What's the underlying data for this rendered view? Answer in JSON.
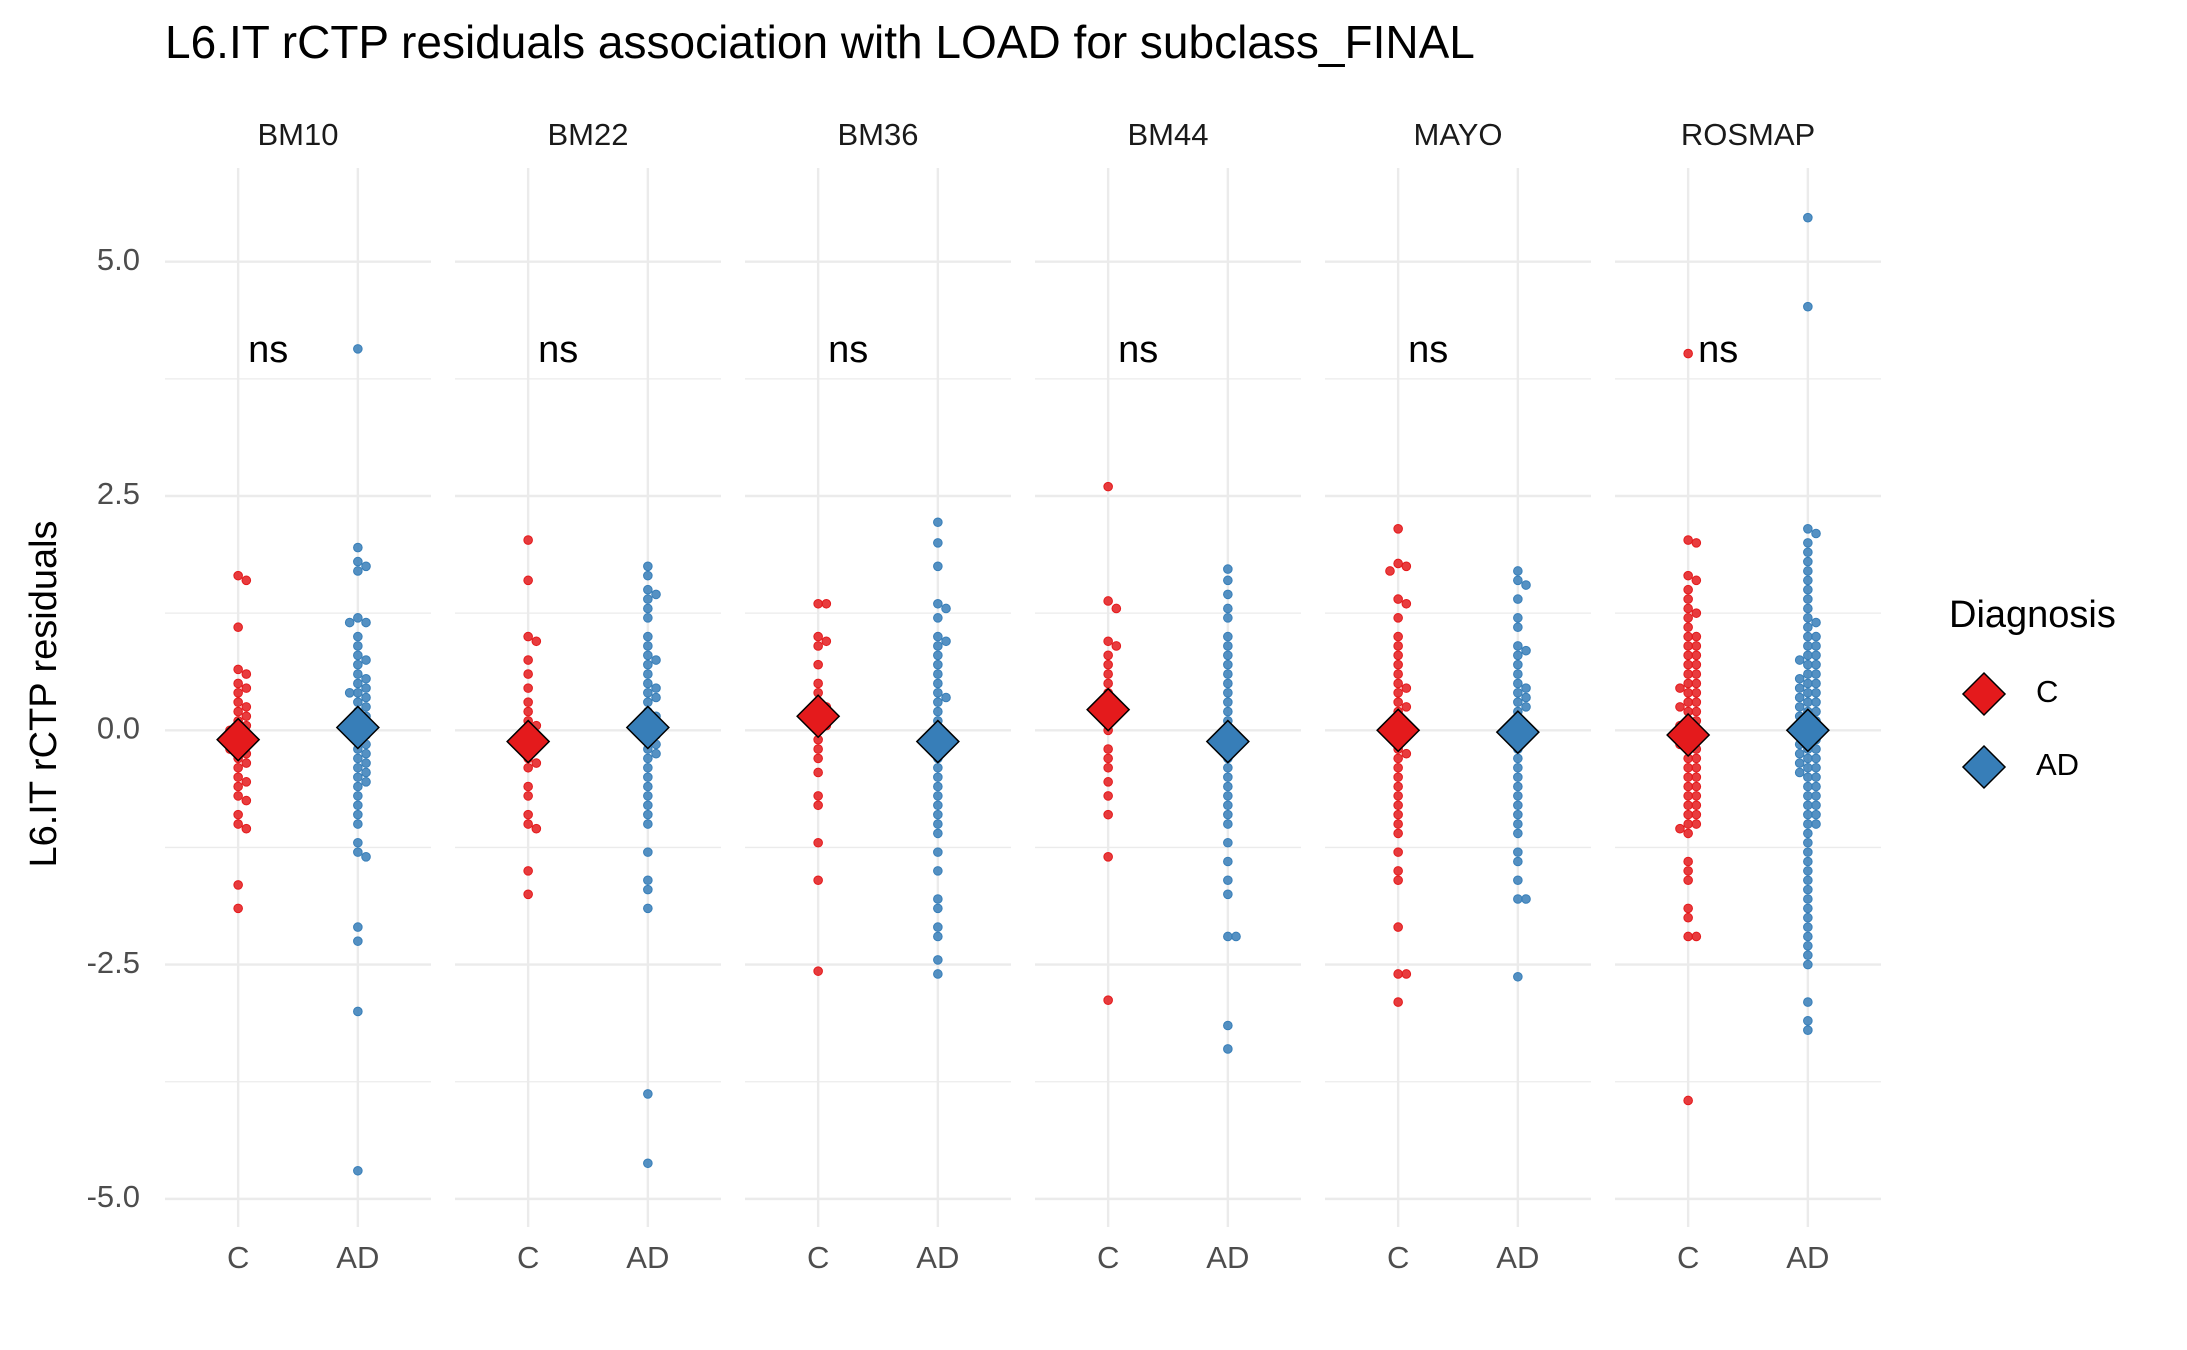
{
  "chart_data": {
    "type": "beeswarm",
    "title": "L6.IT rCTP residuals association with LOAD for subclass_FINAL",
    "y_label": "L6.IT rCTP residuals",
    "legend_title": "Diagnosis",
    "legend_position": "right",
    "categories": [
      "C",
      "AD"
    ],
    "series": [
      {
        "name": "C",
        "color": "#e41a1c"
      },
      {
        "name": "AD",
        "color": "#377eb8"
      }
    ],
    "ylim": [
      -5.3,
      6.0
    ],
    "yticks": [
      {
        "value": -5,
        "label": "-5.0"
      },
      {
        "value": -2.5,
        "label": "-2.5"
      },
      {
        "value": 0,
        "label": "0.0"
      },
      {
        "value": 2.5,
        "label": "2.5"
      },
      {
        "value": 5,
        "label": "5.0"
      }
    ],
    "minor_yticks": [
      -3.75,
      -1.25,
      1.25,
      3.75
    ],
    "grid": true,
    "panels": [
      {
        "name": "BM10",
        "label": "ns",
        "means": [
          -0.1,
          0.03
        ],
        "values": [
          [
            1.65,
            1.6,
            1.1,
            0.65,
            0.6,
            0.5,
            0.45,
            0.4,
            0.3,
            0.25,
            0.2,
            0.15,
            0.1,
            0.05,
            0.0,
            0.0,
            -0.05,
            -0.1,
            -0.1,
            -0.15,
            -0.2,
            -0.2,
            -0.25,
            -0.3,
            -0.35,
            -0.4,
            -0.5,
            -0.55,
            -0.6,
            -0.7,
            -0.75,
            -0.9,
            -1.0,
            -1.05,
            -1.65,
            -1.9
          ],
          [
            4.07,
            1.95,
            1.8,
            1.75,
            1.7,
            1.2,
            1.15,
            1.15,
            1.0,
            0.9,
            0.8,
            0.75,
            0.7,
            0.6,
            0.55,
            0.5,
            0.45,
            0.4,
            0.4,
            0.35,
            0.3,
            0.25,
            0.2,
            0.15,
            0.1,
            0.05,
            0.05,
            0.0,
            -0.05,
            -0.1,
            -0.15,
            -0.2,
            -0.25,
            -0.3,
            -0.35,
            -0.4,
            -0.45,
            -0.5,
            -0.55,
            -0.6,
            -0.7,
            -0.8,
            -0.9,
            -1.0,
            -1.2,
            -1.3,
            -1.35,
            -2.1,
            -2.25,
            -3.0,
            -4.7
          ]
        ]
      },
      {
        "name": "BM22",
        "label": "ns",
        "means": [
          -0.12,
          0.03
        ],
        "values": [
          [
            2.03,
            1.6,
            1.0,
            0.95,
            0.75,
            0.6,
            0.45,
            0.3,
            0.2,
            0.1,
            0.05,
            0.0,
            -0.05,
            -0.1,
            -0.15,
            -0.2,
            -0.3,
            -0.35,
            -0.4,
            -0.6,
            -0.7,
            -0.9,
            -1.0,
            -1.05,
            -1.5,
            -1.75
          ],
          [
            1.75,
            1.65,
            1.5,
            1.45,
            1.4,
            1.3,
            1.2,
            1.0,
            0.9,
            0.8,
            0.75,
            0.7,
            0.6,
            0.5,
            0.45,
            0.4,
            0.35,
            0.3,
            0.2,
            0.15,
            0.1,
            0.05,
            0.0,
            -0.05,
            -0.1,
            -0.15,
            -0.2,
            -0.25,
            -0.3,
            -0.4,
            -0.5,
            -0.6,
            -0.7,
            -0.8,
            -0.9,
            -1.0,
            -1.3,
            -1.6,
            -1.7,
            -1.9,
            -3.88,
            -4.62
          ]
        ]
      },
      {
        "name": "BM36",
        "label": "ns",
        "means": [
          0.15,
          -0.12
        ],
        "values": [
          [
            1.35,
            1.35,
            1.0,
            0.95,
            0.9,
            0.7,
            0.5,
            0.4,
            0.3,
            0.25,
            0.2,
            0.15,
            0.1,
            0.05,
            0.0,
            -0.1,
            -0.2,
            -0.3,
            -0.45,
            -0.7,
            -0.8,
            -1.2,
            -1.6,
            -2.57
          ],
          [
            2.22,
            2.0,
            1.75,
            1.35,
            1.3,
            1.2,
            1.0,
            0.95,
            0.9,
            0.8,
            0.7,
            0.6,
            0.5,
            0.4,
            0.35,
            0.3,
            0.2,
            0.1,
            0.0,
            -0.05,
            -0.1,
            -0.2,
            -0.3,
            -0.4,
            -0.5,
            -0.6,
            -0.7,
            -0.8,
            -0.9,
            -1.0,
            -1.1,
            -1.3,
            -1.5,
            -1.8,
            -1.9,
            -2.1,
            -2.2,
            -2.45,
            -2.6
          ]
        ]
      },
      {
        "name": "BM44",
        "label": "ns",
        "means": [
          0.22,
          -0.12
        ],
        "values": [
          [
            2.6,
            1.38,
            1.3,
            0.95,
            0.9,
            0.8,
            0.7,
            0.6,
            0.5,
            0.4,
            0.3,
            0.2,
            0.15,
            0.1,
            0.0,
            -0.2,
            -0.3,
            -0.4,
            -0.55,
            -0.7,
            -0.9,
            -1.35,
            -2.88
          ],
          [
            1.72,
            1.6,
            1.45,
            1.3,
            1.2,
            1.0,
            0.9,
            0.8,
            0.7,
            0.6,
            0.5,
            0.4,
            0.3,
            0.2,
            0.1,
            0.0,
            -0.05,
            -0.1,
            -0.2,
            -0.3,
            -0.4,
            -0.5,
            -0.6,
            -0.7,
            -0.8,
            -0.9,
            -1.0,
            -1.2,
            -1.4,
            -1.6,
            -1.75,
            -2.2,
            -2.2,
            -3.15,
            -3.4
          ]
        ]
      },
      {
        "name": "MAYO",
        "label": "ns",
        "means": [
          0.0,
          -0.02
        ],
        "values": [
          [
            2.15,
            1.78,
            1.75,
            1.7,
            1.4,
            1.35,
            1.2,
            1.0,
            0.9,
            0.8,
            0.7,
            0.6,
            0.5,
            0.45,
            0.4,
            0.3,
            0.25,
            0.2,
            0.1,
            0.05,
            0.0,
            -0.05,
            -0.1,
            -0.2,
            -0.25,
            -0.3,
            -0.4,
            -0.5,
            -0.6,
            -0.7,
            -0.8,
            -0.9,
            -1.0,
            -1.1,
            -1.3,
            -1.5,
            -1.6,
            -2.1,
            -2.6,
            -2.6,
            -2.9
          ],
          [
            1.7,
            1.6,
            1.55,
            1.4,
            1.2,
            1.1,
            0.9,
            0.85,
            0.8,
            0.7,
            0.6,
            0.5,
            0.45,
            0.4,
            0.35,
            0.3,
            0.25,
            0.2,
            0.1,
            0.0,
            -0.05,
            -0.1,
            -0.2,
            -0.3,
            -0.4,
            -0.5,
            -0.6,
            -0.7,
            -0.8,
            -0.9,
            -1.0,
            -1.1,
            -1.3,
            -1.4,
            -1.6,
            -1.8,
            -1.8,
            -2.63
          ]
        ]
      },
      {
        "name": "ROSMAP",
        "label": "ns",
        "means": [
          -0.05,
          0.0
        ],
        "values": [
          [
            4.02,
            2.03,
            2.0,
            1.65,
            1.6,
            1.5,
            1.4,
            1.3,
            1.25,
            1.2,
            1.1,
            1.0,
            1.0,
            0.9,
            0.9,
            0.8,
            0.8,
            0.7,
            0.7,
            0.6,
            0.6,
            0.5,
            0.5,
            0.45,
            0.4,
            0.4,
            0.3,
            0.3,
            0.25,
            0.2,
            0.2,
            0.1,
            0.1,
            0.05,
            0.0,
            0.0,
            -0.05,
            -0.1,
            -0.1,
            -0.15,
            -0.2,
            -0.2,
            -0.3,
            -0.3,
            -0.4,
            -0.4,
            -0.5,
            -0.5,
            -0.6,
            -0.6,
            -0.7,
            -0.7,
            -0.8,
            -0.8,
            -0.9,
            -0.9,
            -1.0,
            -1.0,
            -1.05,
            -1.1,
            -1.4,
            -1.5,
            -1.6,
            -1.9,
            -2.0,
            -2.2,
            -2.2,
            -3.95
          ],
          [
            5.47,
            4.52,
            2.15,
            2.1,
            2.0,
            1.9,
            1.8,
            1.7,
            1.6,
            1.5,
            1.4,
            1.3,
            1.2,
            1.15,
            1.1,
            1.0,
            1.0,
            0.9,
            0.9,
            0.8,
            0.8,
            0.75,
            0.7,
            0.7,
            0.6,
            0.6,
            0.55,
            0.5,
            0.5,
            0.45,
            0.4,
            0.4,
            0.35,
            0.3,
            0.3,
            0.25,
            0.2,
            0.2,
            0.15,
            0.1,
            0.1,
            0.05,
            0.0,
            0.0,
            -0.05,
            -0.1,
            -0.1,
            -0.15,
            -0.2,
            -0.2,
            -0.25,
            -0.3,
            -0.3,
            -0.35,
            -0.4,
            -0.4,
            -0.45,
            -0.5,
            -0.5,
            -0.6,
            -0.6,
            -0.7,
            -0.7,
            -0.8,
            -0.8,
            -0.9,
            -0.9,
            -1.0,
            -1.0,
            -1.1,
            -1.2,
            -1.3,
            -1.4,
            -1.5,
            -1.6,
            -1.7,
            -1.8,
            -1.9,
            -2.0,
            -2.1,
            -2.2,
            -2.3,
            -2.4,
            -2.5,
            -2.9,
            -3.1,
            -3.2
          ]
        ]
      }
    ]
  }
}
